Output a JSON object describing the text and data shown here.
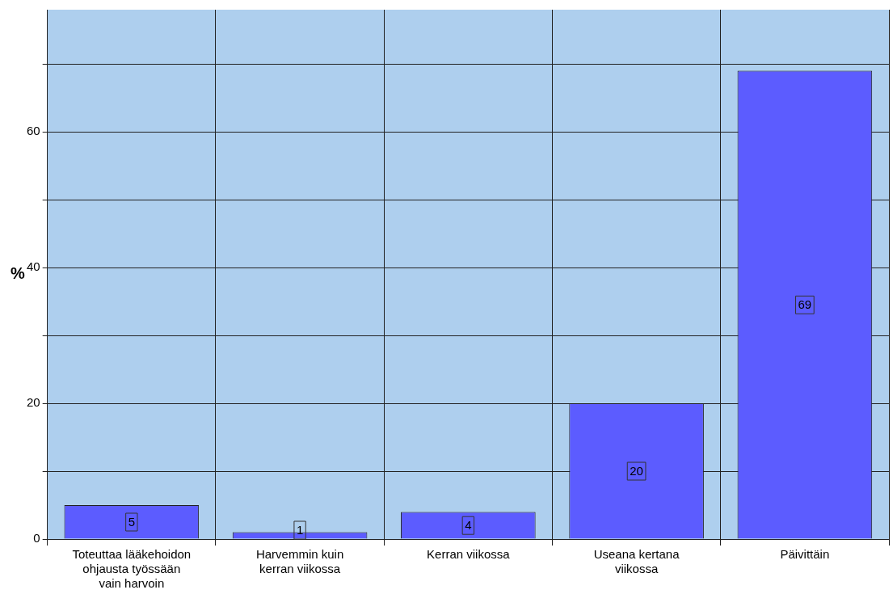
{
  "chart_data": {
    "type": "bar",
    "ylabel": "%",
    "categories": [
      "Toteuttaa lääkehoidon ohjausta työssään vain harvoin",
      "Harvemmin kuin kerran viikossa",
      "Kerran viikossa",
      "Useana kertana viikossa",
      "Päivittäin"
    ],
    "values": [
      5,
      1,
      4,
      20,
      69
    ],
    "color": "#5c5cff",
    "data_labels": true,
    "ylim": [
      0,
      78
    ],
    "yticks": [
      0,
      {
        "value": 10,
        "label": null
      },
      20,
      {
        "value": 30,
        "label": null
      },
      40,
      {
        "value": 50,
        "label": null
      },
      60,
      {
        "value": 70,
        "label": null
      }
    ],
    "grid": true,
    "legend": false
  }
}
